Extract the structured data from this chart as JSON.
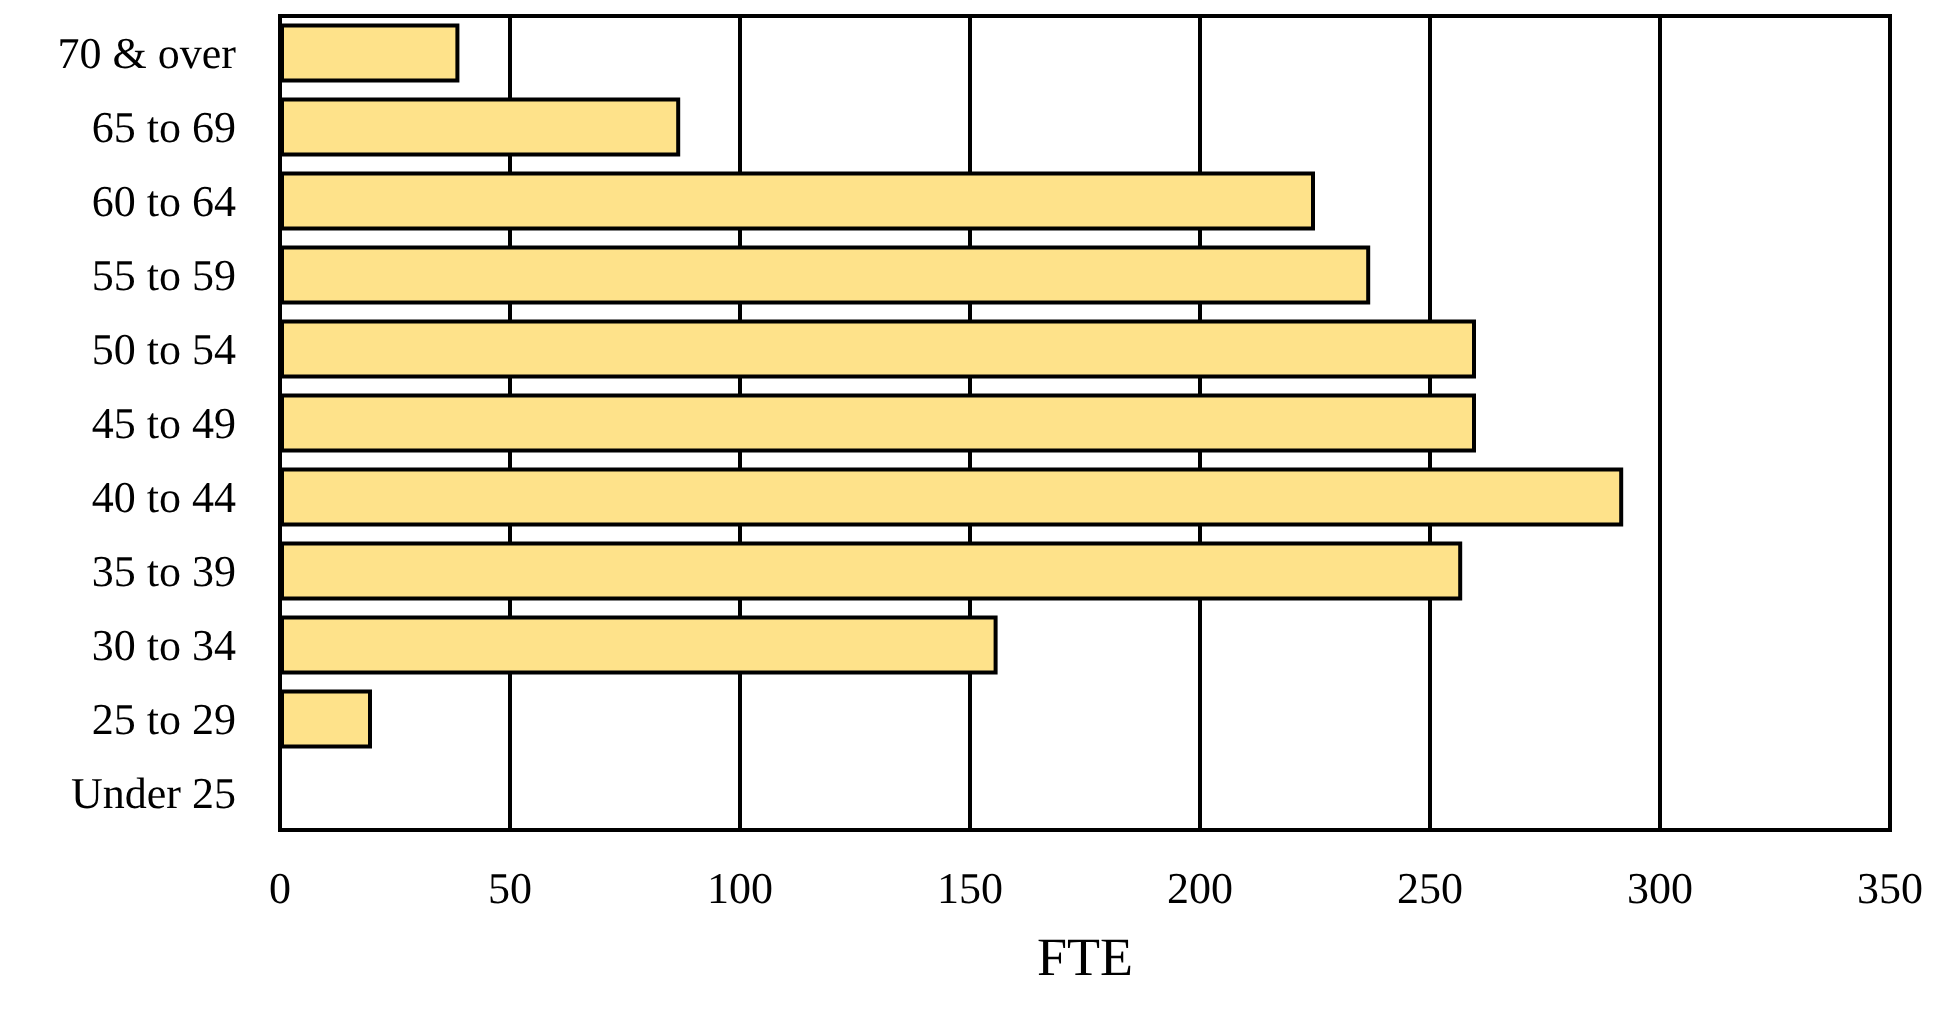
{
  "chart_data": {
    "type": "bar",
    "orientation": "horizontal",
    "xlabel": "FTE",
    "categories": [
      "70 & over",
      "65 to 69",
      "60 to 64",
      "55 to 59",
      "50 to 54",
      "45 to 49",
      "40 to 44",
      "35 to 39",
      "30 to 34",
      "25 to 29",
      "Under 25"
    ],
    "values": [
      39,
      87,
      225,
      237,
      260,
      260,
      292,
      257,
      156,
      20,
      null
    ],
    "color": "#fee28a",
    "xlim": [
      0,
      350
    ],
    "xticks": [
      0,
      50,
      100,
      150,
      200,
      250,
      300,
      350
    ],
    "grid": "x"
  }
}
